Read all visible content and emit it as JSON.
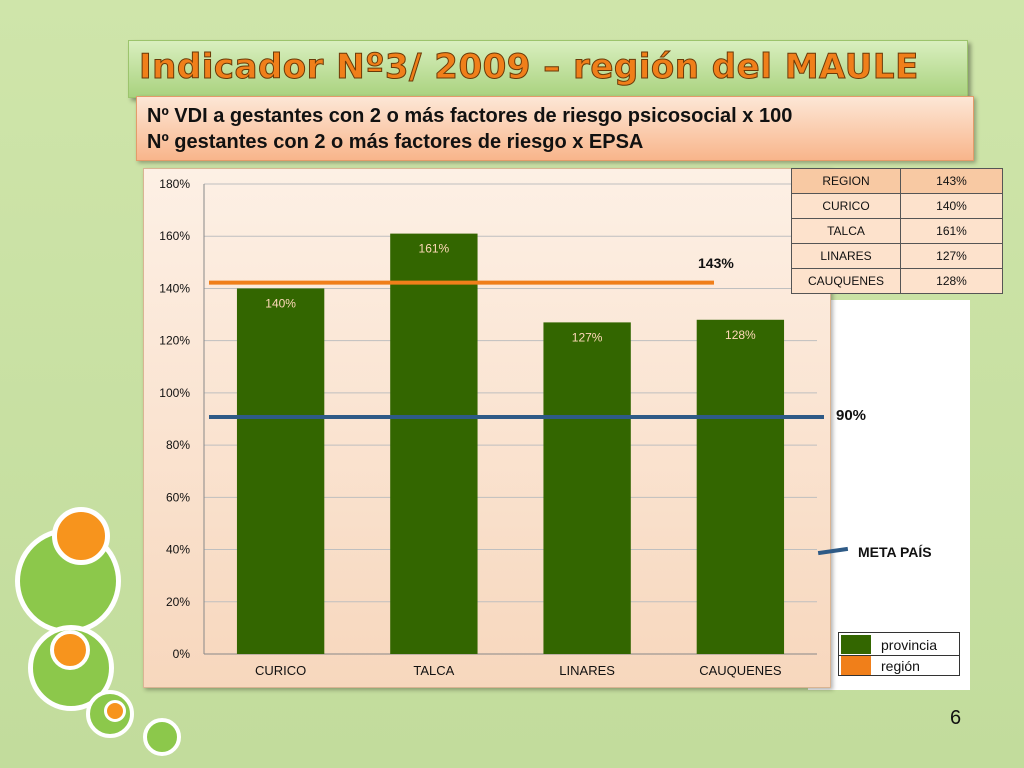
{
  "title": "Indicador Nº3/ 2009 – región del MAULE",
  "formula": {
    "numerator": "Nº VDI a gestantes con 2 o más factores de riesgo psicosocial  x 100",
    "denominator": "Nº gestantes con 2 o más factores de riesgo x EPSA"
  },
  "chart_data": {
    "type": "bar",
    "categories": [
      "CURICO",
      "TALCA",
      "LINARES",
      "CAUQUENES"
    ],
    "values": [
      140,
      161,
      127,
      128
    ],
    "value_labels": [
      "140%",
      "161%",
      "127%",
      "128%"
    ],
    "ylim": [
      0,
      180
    ],
    "yticks": [
      "0%",
      "20%",
      "40%",
      "60%",
      "80%",
      "100%",
      "120%",
      "140%",
      "160%",
      "180%"
    ],
    "reference_lines": [
      {
        "value": 143,
        "label": "143%",
        "color": "#f07f1a"
      },
      {
        "value": 90,
        "label": "90%",
        "color": "#2e5a86"
      }
    ],
    "bar_color": "#336600"
  },
  "region_table": [
    {
      "name": "REGION",
      "value": "143%"
    },
    {
      "name": "CURICO",
      "value": "140%"
    },
    {
      "name": "TALCA",
      "value": "161%"
    },
    {
      "name": "LINARES",
      "value": "127%"
    },
    {
      "name": "CAUQUENES",
      "value": "128%"
    }
  ],
  "meta_label": "META PAÍS",
  "legend": [
    {
      "label": "provincia",
      "color": "#336600"
    },
    {
      "label": "región",
      "color": "#f07f1a"
    }
  ],
  "page_number": "6"
}
